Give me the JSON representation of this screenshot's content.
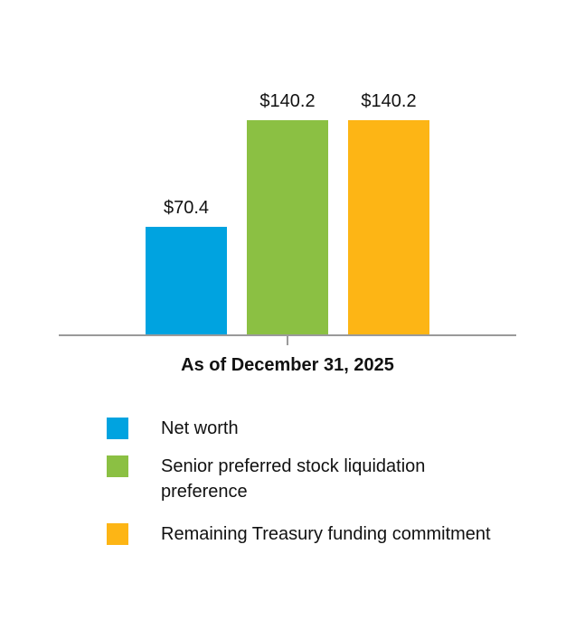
{
  "chart_data": {
    "type": "bar",
    "categories": [
      "As of December 31, 2025"
    ],
    "series": [
      {
        "name": "Net worth",
        "values": [
          70.4
        ],
        "label": "$70.4",
        "color": "#00A3E0"
      },
      {
        "name": "Senior preferred stock liquidation preference",
        "values": [
          140.2
        ],
        "label": "$140.2",
        "color": "#8BC043"
      },
      {
        "name": "Remaining Treasury funding commitment",
        "values": [
          140.2
        ],
        "label": "$140.2",
        "color": "#FDB515"
      }
    ],
    "title": "",
    "xlabel": "",
    "ylabel": "",
    "ylim": [
      0,
      140.2
    ],
    "grid": false,
    "legend_position": "bottom"
  },
  "colors": {
    "axis": "#9a9a9a"
  }
}
